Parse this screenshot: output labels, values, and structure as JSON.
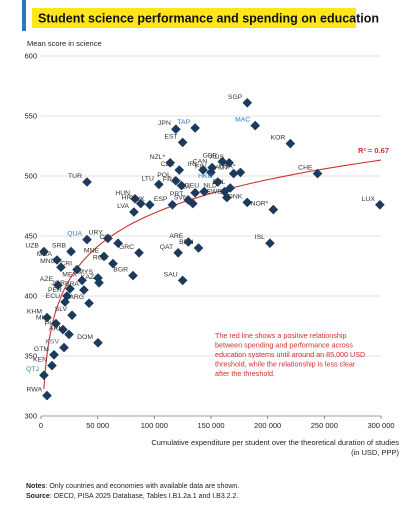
{
  "chart_data": {
    "type": "scatter",
    "title": "Student science performance and spending on education",
    "y_label": "Mean score in science",
    "x_label": [
      "Cumulative expenditure per student over the theoretical duration of studies",
      "(in USD, PPP)"
    ],
    "annotation": [
      "The red line shows a positive relationship",
      "between spending and performance across",
      "education systems until around an 85,000 USD",
      "threshold, while the relationship is less clear",
      "after the threshold."
    ],
    "trendline": {
      "label": "R² = 0.67",
      "color": "#d0312d"
    },
    "notes": {
      "label": "Notes",
      "text": ": Only countries and economies with available data are shown."
    },
    "source": {
      "label": "Source",
      "text": ":  OECD, PISA 2025 Database, Tables I.B1.2a.1 and I.B3.2.2."
    },
    "color": "#1b3a5c",
    "labels": [
      "SGP",
      "MAC",
      "JPN",
      "TAP",
      "EST",
      "KOR",
      "NZL*",
      "CZE",
      "CAN",
      "GBR",
      "AUS",
      "FIN",
      "USA*",
      "IRL",
      "POL",
      "HKG",
      "AUT",
      "CHE",
      "LTU",
      "TUR",
      "FRA",
      "ITA",
      "BEL",
      "NLD*",
      "HUN",
      "SVK",
      "HRV",
      "LVA",
      "ESP",
      "PRT",
      "SVN",
      "DEU",
      "SWE",
      "DNK",
      "NOR*",
      "LUX",
      "ISL",
      "URY",
      "QUA",
      "CHL",
      "UZB",
      "SRB",
      "GRC",
      "MNE",
      "MDA",
      "MNG",
      "CRI",
      "ROU",
      "BGR",
      "QAT",
      "ARE",
      "BRN",
      "MEX",
      "MYS",
      "KAZ",
      "AZE",
      "JOR",
      "BRA",
      "PER",
      "SAU",
      "ECU",
      "ARG",
      "KHM",
      "SLV",
      "MKD",
      "PHL",
      "ARM",
      "DOM",
      "GTM",
      "KSV",
      "KEN",
      "QTJ",
      "RWA"
    ],
    "label_colors": [
      "#333",
      "#2a7ab8",
      "#333",
      "#2a7ab8",
      "#333",
      "#333",
      "#333",
      "#333",
      "#333",
      "#333",
      "#333",
      "#333",
      "#333",
      "#333",
      "#333",
      "#2a7ab8",
      "#333",
      "#333",
      "#333",
      "#333",
      "#333",
      "#333",
      "#333",
      "#333",
      "#333",
      "#333",
      "#333",
      "#333",
      "#333",
      "#333",
      "#333",
      "#333",
      "#333",
      "#333",
      "#333",
      "#333",
      "#333",
      "#333",
      "#2a7ab8",
      "#333",
      "#333",
      "#333",
      "#333",
      "#333",
      "#333",
      "#333",
      "#333",
      "#333",
      "#333",
      "#333",
      "#333",
      "#333",
      "#333",
      "#333",
      "#333",
      "#333",
      "#333",
      "#333",
      "#333",
      "#333",
      "#333",
      "#333",
      "#333",
      "#333",
      "#333",
      "#333",
      "#333",
      "#333",
      "#333",
      "#2a7ab8",
      "#333",
      "#2a7ab8",
      "#333"
    ],
    "x": [
      182000,
      189000,
      119000,
      136000,
      125000,
      220000,
      114000,
      122000,
      151000,
      160000,
      166000,
      150000,
      176000,
      143000,
      119000,
      156000,
      170000,
      244000,
      104000,
      40600,
      124000,
      136000,
      167000,
      162000,
      83000,
      96000,
      88000,
      82000,
      116000,
      130000,
      134000,
      144000,
      164000,
      182000,
      205000,
      299000,
      202000,
      59000,
      40600,
      68000,
      2600,
      26500,
      86500,
      55600,
      14100,
      17600,
      31800,
      63500,
      81200,
      121000,
      130000,
      139000,
      36200,
      50300,
      51200,
      15000,
      25600,
      37900,
      22900,
      125000,
      21200,
      42400,
      5300,
      27400,
      13200,
      19400,
      24700,
      50300,
      11500,
      20300,
      9700,
      2600,
      5300
    ],
    "values": [
      561,
      542,
      539,
      540,
      528,
      527,
      511,
      505,
      507,
      512,
      511,
      503,
      503,
      505,
      496,
      495,
      502,
      502,
      493,
      495,
      492,
      486,
      490,
      487,
      481,
      476,
      477,
      470,
      476,
      480,
      477,
      487,
      482,
      478,
      472,
      476,
      444,
      448,
      447,
      444,
      437,
      437,
      436,
      433,
      430,
      424,
      422,
      427,
      417,
      436,
      445,
      440,
      413,
      415,
      411,
      409,
      406,
      405,
      400,
      413,
      395,
      394,
      382,
      384,
      377,
      372,
      368,
      361,
      351,
      357,
      342,
      334,
      317
    ],
    "xlim": [
      0,
      300000
    ],
    "xticks": [
      0,
      {
        "value": 50000,
        "label": "50 000"
      },
      {
        "value": 100000,
        "label": "100 000"
      },
      {
        "value": 150000,
        "label": "150 000"
      },
      {
        "value": 200000,
        "label": "200 000"
      },
      {
        "value": 250000,
        "label": "250 000"
      },
      {
        "value": 300000,
        "label": "300 000"
      }
    ],
    "ylim": [
      300,
      600
    ],
    "yticks": [
      300,
      350,
      400,
      450,
      500,
      550,
      600
    ],
    "grid": true
  }
}
